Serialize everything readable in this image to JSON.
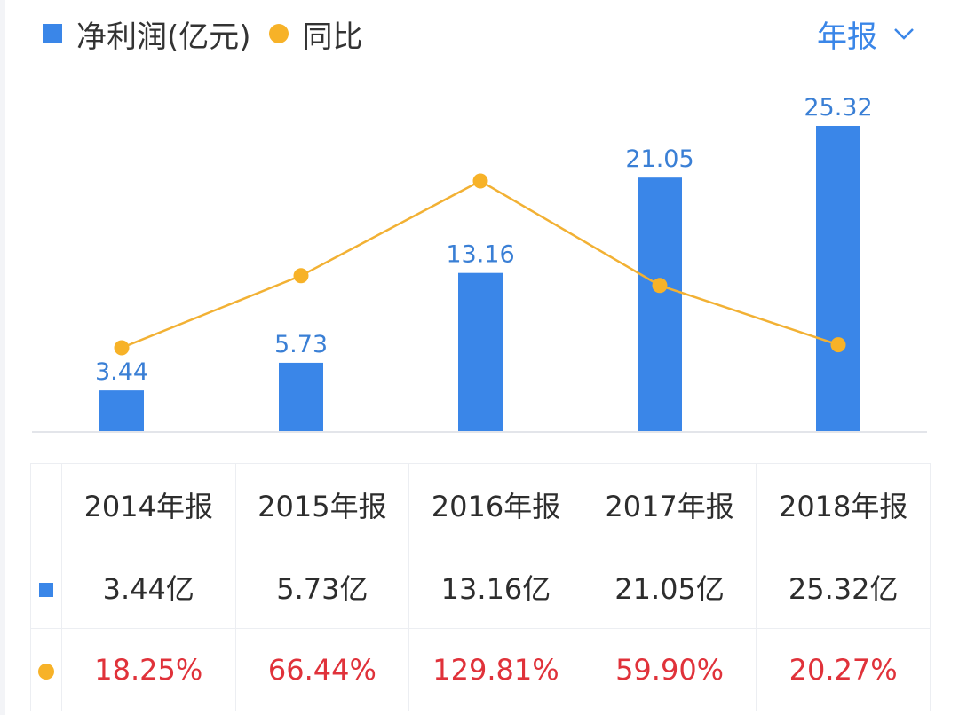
{
  "legend": {
    "profit_label": "净利润(亿元)",
    "yoy_label": "同比",
    "profit_color": "#3a86e8",
    "yoy_color": "#f7b228"
  },
  "period_selector": {
    "label": "年报",
    "icon": "chevron-down-icon"
  },
  "chart_data": {
    "type": "bar",
    "categories": [
      "2014年报",
      "2015年报",
      "2016年报",
      "2017年报",
      "2018年报"
    ],
    "series": [
      {
        "name": "净利润(亿元)",
        "type": "bar",
        "values": [
          3.44,
          5.73,
          13.16,
          21.05,
          25.32
        ],
        "labels": [
          "3.44",
          "5.73",
          "13.16",
          "21.05",
          "25.32"
        ]
      },
      {
        "name": "同比",
        "type": "line",
        "values": [
          18.25,
          66.44,
          129.81,
          59.9,
          20.27
        ]
      }
    ]
  },
  "table": {
    "headers": [
      "2014年报",
      "2015年报",
      "2016年报",
      "2017年报",
      "2018年报"
    ],
    "profit_row": [
      "3.44亿",
      "5.73亿",
      "13.16亿",
      "21.05亿",
      "25.32亿"
    ],
    "yoy_row": [
      "18.25%",
      "66.44%",
      "129.81%",
      "59.90%",
      "20.27%"
    ]
  }
}
